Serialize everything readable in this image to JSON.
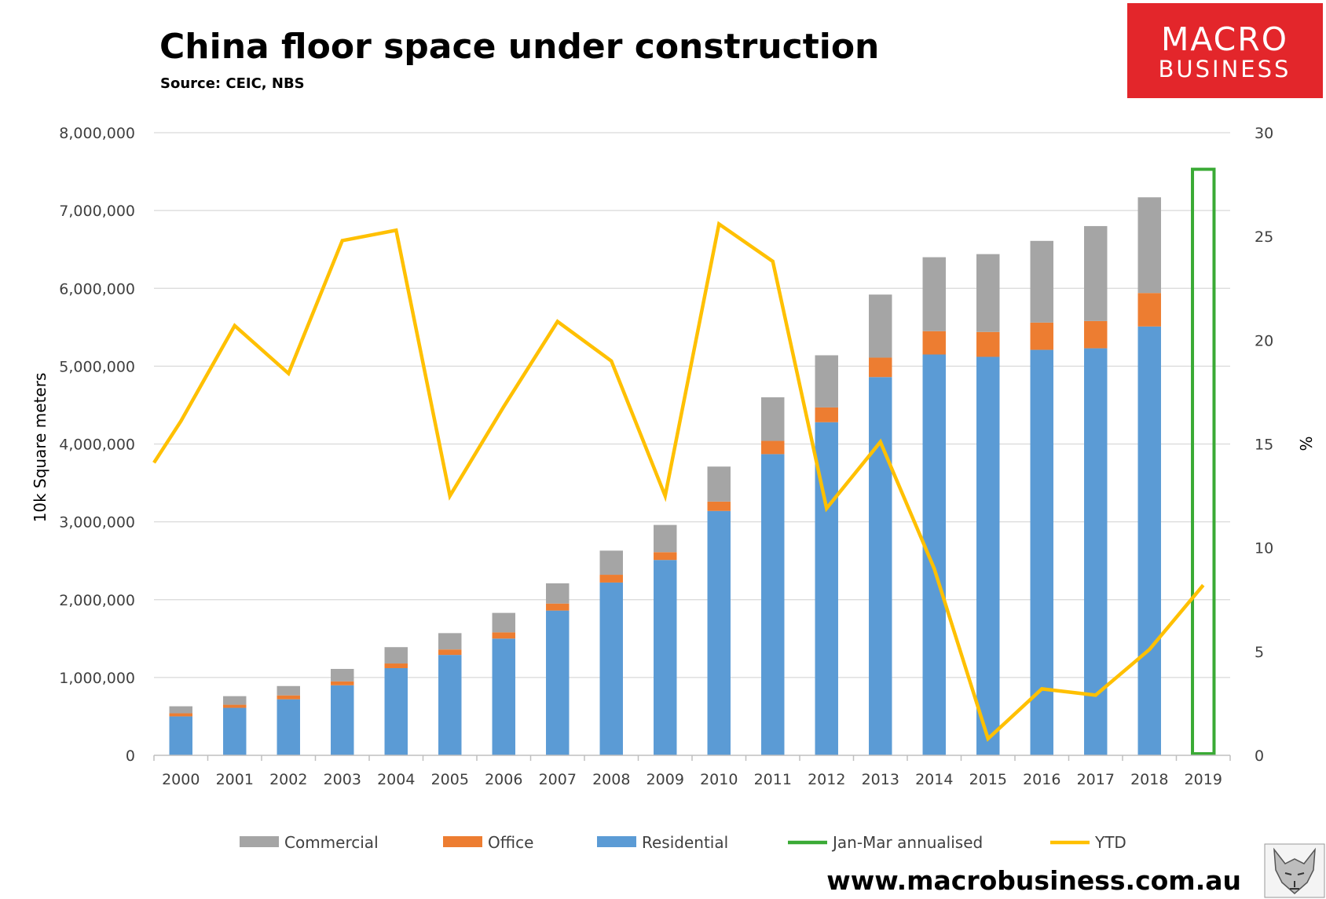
{
  "brand": {
    "logo_line1": "MACRO",
    "logo_line2": "BUSINESS",
    "logo_color": "#e3262b",
    "mascot_icon": "wolf-head-icon",
    "url": "www.macrobusiness.com.au"
  },
  "chart_data": {
    "type": "bar",
    "stacked": true,
    "title": "China floor space under construction",
    "subtitle": "Source: CEIC, NBS",
    "ylabel": "10k Square meters",
    "y2label": "%",
    "ylim": [
      0,
      8000000
    ],
    "y2lim": [
      0,
      30
    ],
    "yticks": [
      "0",
      "1,000,000",
      "2,000,000",
      "3,000,000",
      "4,000,000",
      "5,000,000",
      "6,000,000",
      "7,000,000",
      "8,000,000"
    ],
    "y2ticks": [
      "0",
      "5",
      "10",
      "15",
      "20",
      "25",
      "30"
    ],
    "grid": true,
    "legend_position": "bottom",
    "categories": [
      "2000",
      "2001",
      "2002",
      "2003",
      "2004",
      "2005",
      "2006",
      "2007",
      "2008",
      "2009",
      "2010",
      "2011",
      "2012",
      "2013",
      "2014",
      "2015",
      "2016",
      "2017",
      "2018",
      "2019"
    ],
    "series": [
      {
        "name": "Residential",
        "color": "#5b9bd5",
        "type": "bar",
        "values": [
          500000,
          610000,
          720000,
          900000,
          1120000,
          1290000,
          1500000,
          1860000,
          2220000,
          2510000,
          3140000,
          3870000,
          4280000,
          4860000,
          5150000,
          5120000,
          5210000,
          5230000,
          5510000,
          null
        ]
      },
      {
        "name": "Office",
        "color": "#ed7d31",
        "type": "bar",
        "values": [
          40000,
          40000,
          50000,
          50000,
          60000,
          70000,
          80000,
          90000,
          100000,
          100000,
          120000,
          170000,
          190000,
          250000,
          300000,
          320000,
          350000,
          350000,
          430000,
          null
        ]
      },
      {
        "name": "Commercial",
        "color": "#a5a5a5",
        "type": "bar",
        "values": [
          90000,
          110000,
          120000,
          160000,
          210000,
          210000,
          250000,
          260000,
          310000,
          350000,
          450000,
          560000,
          670000,
          810000,
          950000,
          1000000,
          1050000,
          1220000,
          1230000,
          null
        ]
      },
      {
        "name": "Jan-Mar annualised",
        "color": "#3aaa35",
        "type": "bar-outline",
        "values": [
          null,
          null,
          null,
          null,
          null,
          null,
          null,
          null,
          null,
          null,
          null,
          null,
          null,
          null,
          null,
          null,
          null,
          null,
          null,
          7530000
        ]
      },
      {
        "name": "YTD",
        "color": "#ffc000",
        "type": "line",
        "axis": "right",
        "values": [
          14.1,
          16.1,
          20.7,
          18.4,
          24.8,
          25.3,
          12.5,
          16.8,
          20.9,
          19.0,
          12.5,
          25.6,
          23.8,
          11.9,
          15.1,
          9.0,
          0.8,
          3.2,
          2.9,
          5.1,
          8.2
        ],
        "x": [
          -0.5,
          0,
          1,
          2,
          3,
          4,
          5,
          6,
          7,
          8,
          9,
          10,
          11,
          12,
          13,
          14,
          15,
          16,
          17,
          18,
          19
        ]
      }
    ],
    "legend_order": [
      "Commercial",
      "Office",
      "Residential",
      "Jan-Mar annualised",
      "YTD"
    ]
  }
}
